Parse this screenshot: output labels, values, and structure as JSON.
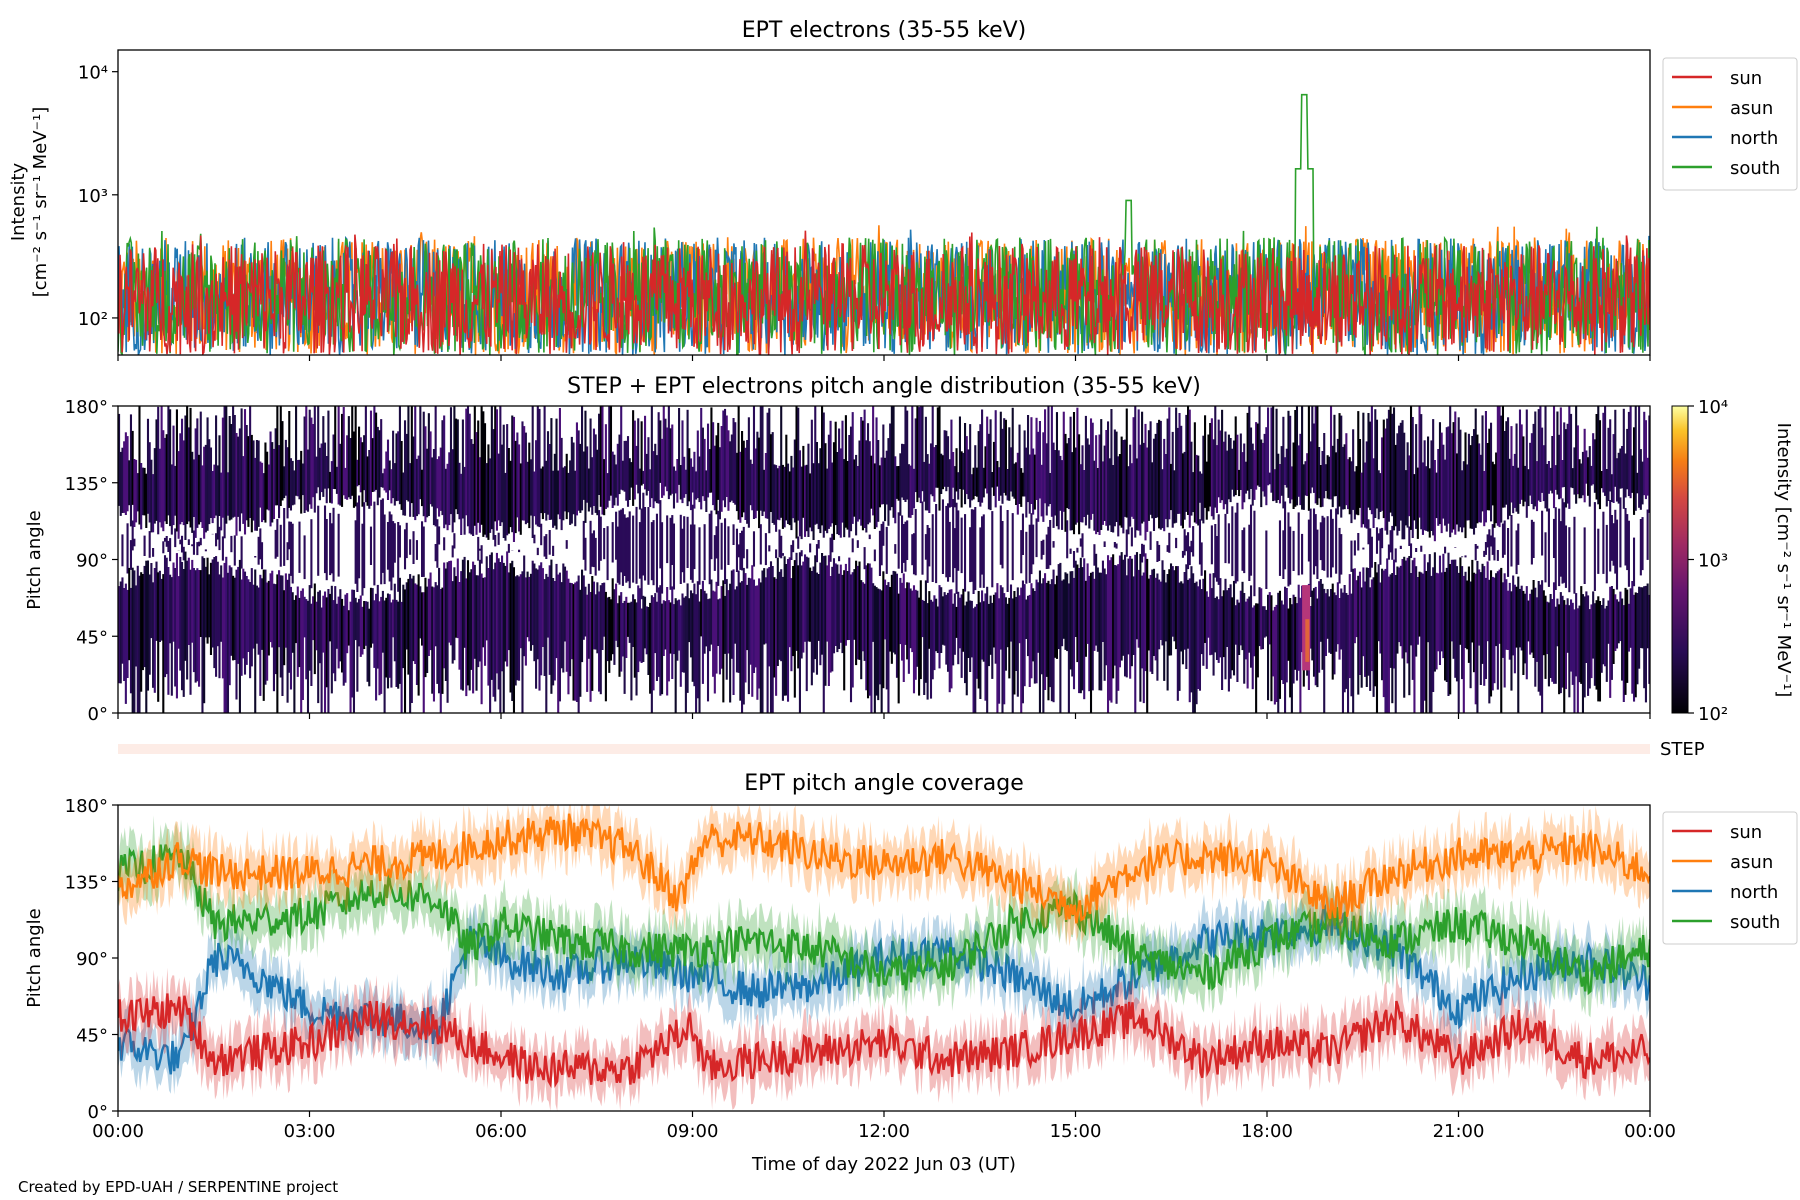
{
  "figure": {
    "credit": "Created by EPD-UAH / SERPENTINE project"
  },
  "chart_data": [
    {
      "type": "line",
      "title": "EPT electrons (35-55 keV)",
      "ylabel_line1": "Intensity",
      "ylabel_line2": "[cm⁻² s⁻¹ sr⁻¹ MeV⁻¹]",
      "yscale": "log",
      "ylim": [
        50,
        15000
      ],
      "yticks": [
        {
          "value": 100,
          "label": "10²"
        },
        {
          "value": 1000,
          "label": "10³"
        },
        {
          "value": 10000,
          "label": "10⁴"
        }
      ],
      "x_range_hours": [
        0,
        24
      ],
      "legend_position": "outside-right",
      "series": [
        {
          "name": "sun",
          "color": "#d62728",
          "typical_range": [
            50,
            400
          ]
        },
        {
          "name": "asun",
          "color": "#ff7f0e",
          "typical_range": [
            50,
            450
          ]
        },
        {
          "name": "north",
          "color": "#1f77b4",
          "typical_range": [
            50,
            450
          ]
        },
        {
          "name": "south",
          "color": "#2ca02c",
          "typical_range": [
            50,
            450
          ],
          "peaks": [
            {
              "time": "18:35",
              "value": 6500
            },
            {
              "time": "15:50",
              "value": 900
            }
          ]
        }
      ],
      "grid": false
    },
    {
      "type": "heatmap",
      "title": "STEP + EPT electrons pitch angle distribution (35-55 keV)",
      "ylabel": "Pitch angle",
      "ylim": [
        0,
        180
      ],
      "yticks": [
        "0°",
        "45°",
        "90°",
        "135°",
        "180°"
      ],
      "colorbar": {
        "scale": "log",
        "range": [
          100,
          10000
        ],
        "tick_labels": [
          "10²",
          "10³",
          "10⁴"
        ],
        "label": "Intensity\n[cm⁻² s⁻¹ sr⁻¹ MeV⁻¹]"
      },
      "step_label": "STEP"
    },
    {
      "type": "line",
      "title": "EPT pitch angle coverage",
      "ylabel": "Pitch angle",
      "ylim": [
        0,
        180
      ],
      "yticks": [
        "0°",
        "45°",
        "90°",
        "135°",
        "180°"
      ],
      "xlabel": "Time of day 2022 Jun 03 (UT)",
      "xticks": [
        "00:00",
        "03:00",
        "06:00",
        "09:00",
        "12:00",
        "15:00",
        "18:00",
        "21:00",
        "00:00"
      ],
      "legend_position": "outside-right",
      "series": [
        {
          "name": "sun",
          "color": "#d62728",
          "keypoints": [
            [
              0,
              55
            ],
            [
              1,
              60
            ],
            [
              1.5,
              30
            ],
            [
              3,
              40
            ],
            [
              4,
              55
            ],
            [
              5,
              50
            ],
            [
              5.5,
              40
            ],
            [
              6.5,
              25
            ],
            [
              8,
              25
            ],
            [
              9,
              50
            ],
            [
              9.2,
              25
            ],
            [
              10,
              30
            ],
            [
              11,
              35
            ],
            [
              12,
              40
            ],
            [
              13,
              30
            ],
            [
              14,
              35
            ],
            [
              15,
              45
            ],
            [
              16,
              55
            ],
            [
              17,
              30
            ],
            [
              18,
              40
            ],
            [
              19,
              35
            ],
            [
              20,
              55
            ],
            [
              21,
              30
            ],
            [
              22,
              50
            ],
            [
              23,
              30
            ],
            [
              24,
              35
            ]
          ]
        },
        {
          "name": "asun",
          "color": "#ff7f0e",
          "keypoints": [
            [
              0,
              130
            ],
            [
              1,
              150
            ],
            [
              1.5,
              140
            ],
            [
              3,
              140
            ],
            [
              4,
              145
            ],
            [
              5,
              150
            ],
            [
              6,
              160
            ],
            [
              7,
              165
            ],
            [
              8,
              155
            ],
            [
              8.8,
              125
            ],
            [
              9.2,
              160
            ],
            [
              10,
              160
            ],
            [
              11,
              150
            ],
            [
              12,
              145
            ],
            [
              13,
              150
            ],
            [
              14,
              135
            ],
            [
              15,
              120
            ],
            [
              16,
              145
            ],
            [
              17,
              150
            ],
            [
              18,
              145
            ],
            [
              19,
              120
            ],
            [
              20,
              140
            ],
            [
              21,
              150
            ],
            [
              22,
              150
            ],
            [
              23,
              155
            ],
            [
              24,
              140
            ]
          ]
        },
        {
          "name": "north",
          "color": "#1f77b4",
          "keypoints": [
            [
              0,
              40
            ],
            [
              1,
              30
            ],
            [
              1.5,
              90
            ],
            [
              2,
              85
            ],
            [
              3,
              60
            ],
            [
              4,
              55
            ],
            [
              5,
              50
            ],
            [
              5.5,
              100
            ],
            [
              6,
              90
            ],
            [
              7,
              80
            ],
            [
              8,
              90
            ],
            [
              9,
              80
            ],
            [
              10,
              70
            ],
            [
              11,
              75
            ],
            [
              12,
              90
            ],
            [
              13,
              95
            ],
            [
              14,
              80
            ],
            [
              15,
              60
            ],
            [
              16,
              80
            ],
            [
              17,
              100
            ],
            [
              18,
              105
            ],
            [
              19,
              110
            ],
            [
              20,
              95
            ],
            [
              21,
              60
            ],
            [
              22,
              80
            ],
            [
              23,
              90
            ],
            [
              24,
              75
            ]
          ]
        },
        {
          "name": "south",
          "color": "#2ca02c",
          "keypoints": [
            [
              0,
              140
            ],
            [
              1,
              150
            ],
            [
              1.5,
              110
            ],
            [
              3,
              115
            ],
            [
              4,
              130
            ],
            [
              5,
              125
            ],
            [
              5.5,
              95
            ],
            [
              6,
              110
            ],
            [
              7,
              100
            ],
            [
              8,
              95
            ],
            [
              9,
              95
            ],
            [
              10,
              100
            ],
            [
              11,
              95
            ],
            [
              12,
              80
            ],
            [
              13,
              85
            ],
            [
              14,
              110
            ],
            [
              15,
              120
            ],
            [
              16,
              90
            ],
            [
              17,
              80
            ],
            [
              18,
              100
            ],
            [
              19,
              110
            ],
            [
              20,
              100
            ],
            [
              21,
              110
            ],
            [
              22,
              100
            ],
            [
              23,
              80
            ],
            [
              24,
              95
            ]
          ]
        }
      ],
      "grid": false
    }
  ]
}
